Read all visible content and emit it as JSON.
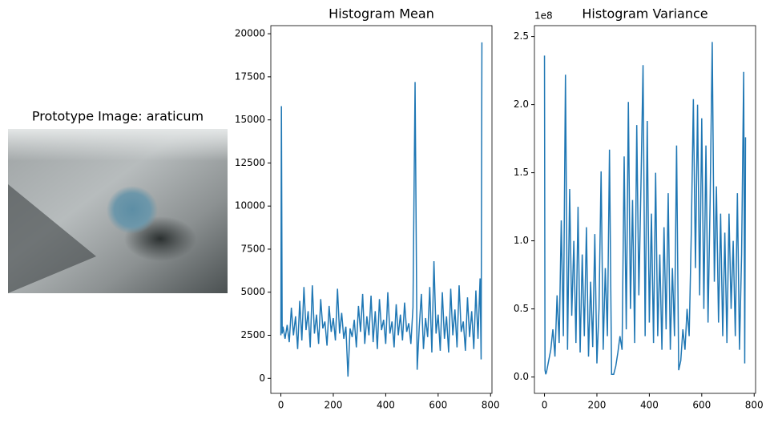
{
  "chart_data": [
    {
      "type": "image",
      "title": "Prototype Image: araticum"
    },
    {
      "type": "line",
      "title": "Histogram Mean",
      "x": [
        0,
        2,
        5,
        8,
        16,
        24,
        32,
        40,
        48,
        56,
        64,
        72,
        80,
        88,
        96,
        104,
        112,
        120,
        128,
        136,
        144,
        152,
        160,
        168,
        176,
        184,
        192,
        200,
        208,
        216,
        224,
        232,
        240,
        248,
        256,
        264,
        272,
        280,
        288,
        296,
        304,
        312,
        320,
        328,
        336,
        344,
        352,
        360,
        368,
        376,
        384,
        392,
        400,
        408,
        416,
        424,
        432,
        440,
        448,
        456,
        464,
        472,
        480,
        488,
        496,
        504,
        512,
        520,
        528,
        536,
        544,
        552,
        560,
        568,
        576,
        584,
        592,
        600,
        608,
        616,
        624,
        632,
        640,
        648,
        656,
        664,
        672,
        680,
        688,
        696,
        704,
        712,
        720,
        728,
        736,
        744,
        752,
        760,
        764,
        767
      ],
      "series": [
        {
          "color": "#1f77b4",
          "values": [
            2500,
            15800,
            2600,
            3000,
            2300,
            3100,
            2100,
            4100,
            2500,
            3600,
            1700,
            4500,
            2200,
            5300,
            2800,
            3900,
            1800,
            5400,
            2600,
            3700,
            2000,
            4600,
            2900,
            3300,
            1900,
            4200,
            2700,
            3500,
            2200,
            5200,
            2600,
            3800,
            2300,
            3000,
            100,
            2900,
            2400,
            3400,
            1800,
            4200,
            2700,
            4900,
            2000,
            3600,
            2500,
            4800,
            2100,
            3900,
            1700,
            4600,
            2800,
            3400,
            2000,
            5000,
            2600,
            3300,
            1800,
            4300,
            2500,
            3700,
            2200,
            4400,
            2700,
            3200,
            2000,
            4100,
            17200,
            500,
            3000,
            4900,
            1700,
            3500,
            2400,
            5300,
            1500,
            6800,
            2600,
            3700,
            1600,
            5000,
            2300,
            3600,
            1500,
            5200,
            2500,
            4000,
            1800,
            5400,
            2700,
            3300,
            1600,
            4700,
            2400,
            3900,
            1700,
            5100,
            2300,
            5800,
            1100,
            19500
          ]
        }
      ],
      "xlim": [
        -38.35,
        805.35
      ],
      "ylim": [
        -870,
        20470
      ],
      "xticks": [
        0,
        200,
        400,
        600,
        800
      ],
      "yticks": [
        0,
        2500,
        5000,
        7500,
        10000,
        12500,
        15000,
        17500,
        20000
      ]
    },
    {
      "type": "line",
      "title": "Histogram Variance",
      "y_offset_label": "1e8",
      "x": [
        0,
        2,
        5,
        8,
        16,
        24,
        32,
        40,
        48,
        56,
        64,
        72,
        80,
        88,
        96,
        104,
        112,
        120,
        128,
        136,
        144,
        152,
        160,
        168,
        176,
        184,
        192,
        200,
        208,
        216,
        224,
        232,
        240,
        248,
        256,
        264,
        272,
        280,
        288,
        296,
        304,
        312,
        320,
        328,
        336,
        344,
        352,
        360,
        368,
        376,
        384,
        392,
        400,
        408,
        416,
        424,
        432,
        440,
        448,
        456,
        464,
        472,
        480,
        488,
        496,
        504,
        512,
        520,
        528,
        536,
        544,
        552,
        560,
        568,
        576,
        584,
        592,
        600,
        608,
        616,
        624,
        632,
        640,
        648,
        656,
        664,
        672,
        680,
        688,
        696,
        704,
        712,
        720,
        728,
        736,
        744,
        752,
        760,
        764,
        767
      ],
      "series": [
        {
          "color": "#1f77b4",
          "values": [
            2.36,
            0.05,
            0.02,
            0.04,
            0.12,
            0.2,
            0.35,
            0.15,
            0.6,
            0.25,
            1.15,
            0.3,
            2.22,
            0.2,
            1.38,
            0.45,
            1.0,
            0.25,
            1.25,
            0.18,
            0.9,
            0.3,
            1.1,
            0.15,
            0.7,
            0.22,
            1.05,
            0.1,
            0.5,
            1.51,
            0.2,
            0.8,
            0.3,
            1.67,
            0.02,
            0.02,
            0.08,
            0.18,
            0.3,
            0.2,
            1.62,
            0.35,
            2.02,
            0.5,
            1.3,
            0.25,
            1.85,
            0.6,
            1.4,
            2.29,
            0.3,
            1.88,
            0.4,
            1.2,
            0.25,
            1.5,
            0.3,
            0.9,
            0.2,
            1.1,
            0.35,
            1.35,
            0.2,
            0.8,
            0.3,
            1.7,
            0.05,
            0.12,
            0.35,
            0.2,
            0.5,
            0.3,
            1.05,
            2.04,
            0.8,
            2.0,
            0.6,
            1.9,
            0.5,
            1.7,
            0.4,
            1.3,
            2.46,
            0.7,
            1.4,
            0.4,
            1.2,
            0.3,
            1.06,
            0.25,
            1.2,
            0.5,
            1.0,
            0.3,
            1.35,
            0.2,
            0.9,
            2.24,
            0.1,
            1.76
          ]
        }
      ],
      "xlim": [
        -38.35,
        805.35
      ],
      "ylim": [
        -0.12,
        2.58
      ],
      "xticks": [
        0,
        200,
        400,
        600,
        800
      ],
      "yticks": [
        {
          "value": 0,
          "label": "0.0"
        },
        0.5,
        {
          "value": 1,
          "label": "1.0"
        },
        1.5,
        {
          "value": 2,
          "label": "2.0"
        },
        2.5
      ]
    }
  ]
}
